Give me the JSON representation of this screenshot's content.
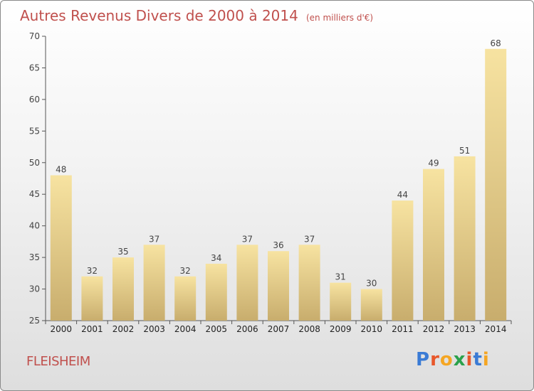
{
  "chart_data": {
    "type": "bar",
    "title": "Autres Revenus Divers de 2000 à 2014",
    "subtitle": "(en milliers d'€)",
    "xlabel": "",
    "ylabel": "",
    "categories": [
      "2000",
      "2001",
      "2002",
      "2003",
      "2004",
      "2005",
      "2006",
      "2007",
      "2008",
      "2009",
      "2010",
      "2011",
      "2012",
      "2013",
      "2014"
    ],
    "values": [
      48,
      32,
      35,
      37,
      32,
      34,
      37,
      36,
      37,
      31,
      30,
      44,
      49,
      51,
      68
    ],
    "ylim": [
      25,
      70
    ],
    "yticks": [
      25,
      30,
      35,
      40,
      45,
      50,
      55,
      60,
      65,
      70
    ],
    "grid": false,
    "legend": "none"
  },
  "footer": {
    "place": "FLEISHEIM"
  },
  "logo": {
    "text": "Proxiti",
    "colors": [
      "#3a7bd5",
      "#e8572a",
      "#f5a623",
      "#2aa14b",
      "#e8572a",
      "#3a7bd5",
      "#f5a623"
    ]
  },
  "colors": {
    "title": "#c0504d",
    "bar_light": "#f7e3a1",
    "bar_dark": "#c8ad6d"
  }
}
